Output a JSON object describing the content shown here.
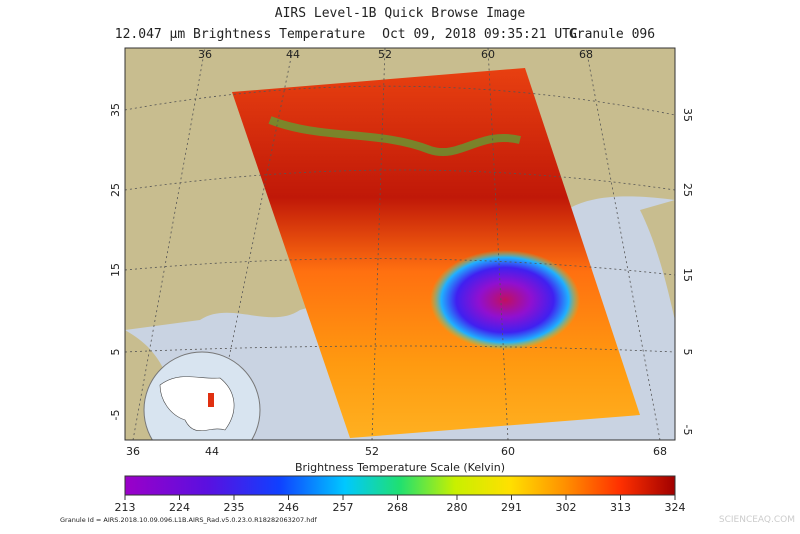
{
  "header": {
    "title": "AIRS Level-1B Quick Browse Image",
    "subtitle": [
      "12.047 μm Brightness Temperature",
      "Oct 09, 2018 09:35:21 UTC",
      "Granule 096"
    ]
  },
  "map": {
    "lon_top": [
      36,
      44,
      52,
      60,
      68
    ],
    "lon_bottom": [
      36,
      44,
      52,
      60,
      68
    ],
    "lat_left": [
      35,
      25,
      15,
      5,
      -5
    ],
    "lat_right": [
      35,
      25,
      15,
      5,
      -5
    ]
  },
  "colorbar": {
    "title": "Brightness Temperature Scale (Kelvin)",
    "lim": [
      213,
      324
    ],
    "ticks": [
      213,
      224,
      235,
      246,
      257,
      268,
      280,
      291,
      302,
      313,
      324
    ]
  },
  "footer": {
    "granule_id": "Granule Id = AIRS.2018.10.09.096.L1B.AIRS_Rad.v5.0.23.0.R18282063207.hdf",
    "watermark": "SCIENCEAQ.COM"
  }
}
